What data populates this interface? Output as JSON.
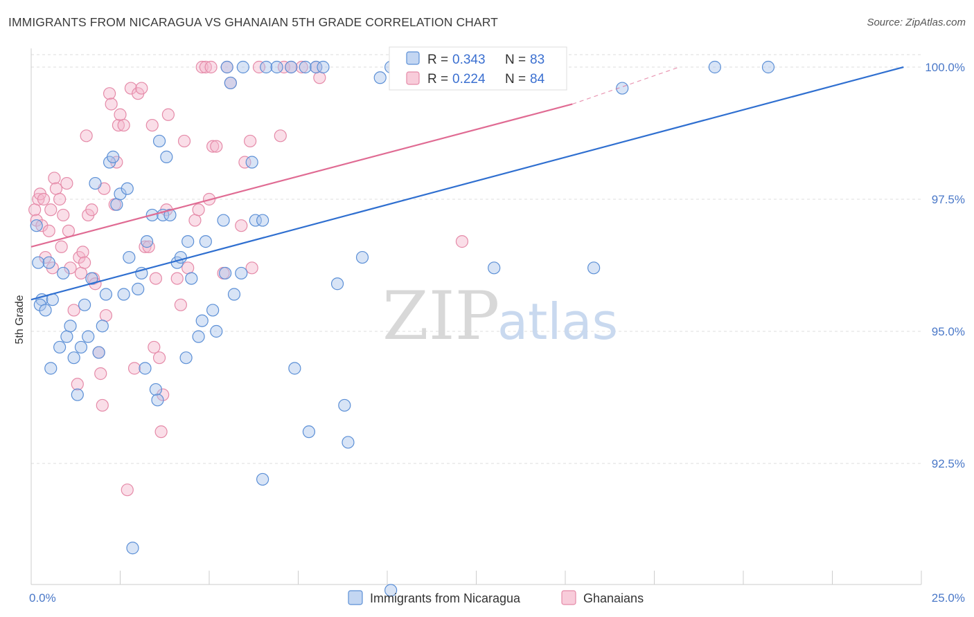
{
  "title": "IMMIGRANTS FROM NICARAGUA VS GHANAIAN 5TH GRADE CORRELATION CHART",
  "source": "Source: ZipAtlas.com",
  "watermark": {
    "zip": "ZIP",
    "atlas": "atlas"
  },
  "colors": {
    "blue_fill": "#a9c4ec",
    "blue_stroke": "#5b8fd6",
    "blue_line": "#2f6fd0",
    "pink_fill": "#f5b6cb",
    "pink_stroke": "#e58aa8",
    "pink_line": "#e06b93",
    "grid": "#dddddd",
    "axis_text": "#4a78c8"
  },
  "legend": {
    "items": [
      {
        "r_label": "R = ",
        "r_value": "0.343",
        "n_label": "N = ",
        "n_value": "83"
      },
      {
        "r_label": "R = ",
        "r_value": "0.224",
        "n_label": "N = ",
        "n_value": "84"
      }
    ]
  },
  "chart_data": {
    "type": "scatter",
    "title": "IMMIGRANTS FROM NICARAGUA VS GHANAIAN 5TH GRADE CORRELATION CHART",
    "ylabel": "5th Grade",
    "xlabel": "",
    "xlim": [
      0,
      25
    ],
    "ylim": [
      90.0,
      100.3
    ],
    "x_tick_labels": [
      "0.0%",
      "25.0%"
    ],
    "y_ticks": [
      92.5,
      95.0,
      97.5,
      100.0
    ],
    "y_tick_labels": [
      "92.5%",
      "95.0%",
      "97.5%",
      "100.0%"
    ],
    "grid": true,
    "legend_placement": "top-center",
    "series": [
      {
        "name": "Immigrants from Nicaragua",
        "color": "#a9c4ec",
        "R": 0.343,
        "N": 83,
        "trend": {
          "x": [
            0,
            24.5
          ],
          "y": [
            95.6,
            100.0
          ]
        },
        "points": [
          [
            0.15,
            97.0
          ],
          [
            0.2,
            96.3
          ],
          [
            0.3,
            95.6
          ],
          [
            0.25,
            95.5
          ],
          [
            0.4,
            95.4
          ],
          [
            0.5,
            96.3
          ],
          [
            0.6,
            95.6
          ],
          [
            0.55,
            94.3
          ],
          [
            0.8,
            94.7
          ],
          [
            0.9,
            96.1
          ],
          [
            1.0,
            94.9
          ],
          [
            1.1,
            95.1
          ],
          [
            1.2,
            94.5
          ],
          [
            1.3,
            93.8
          ],
          [
            1.4,
            94.7
          ],
          [
            1.5,
            95.5
          ],
          [
            1.6,
            94.9
          ],
          [
            1.7,
            96.0
          ],
          [
            1.8,
            97.8
          ],
          [
            1.9,
            94.6
          ],
          [
            2.0,
            95.1
          ],
          [
            2.1,
            95.7
          ],
          [
            2.2,
            98.2
          ],
          [
            2.3,
            98.3
          ],
          [
            2.4,
            97.4
          ],
          [
            2.5,
            97.6
          ],
          [
            2.6,
            95.7
          ],
          [
            2.7,
            97.7
          ],
          [
            2.75,
            96.4
          ],
          [
            2.85,
            90.9
          ],
          [
            3.0,
            95.8
          ],
          [
            3.1,
            96.1
          ],
          [
            3.2,
            94.3
          ],
          [
            3.25,
            96.7
          ],
          [
            3.4,
            97.2
          ],
          [
            3.5,
            93.9
          ],
          [
            3.55,
            93.7
          ],
          [
            3.6,
            98.6
          ],
          [
            3.7,
            97.2
          ],
          [
            3.8,
            98.3
          ],
          [
            3.9,
            97.2
          ],
          [
            4.1,
            96.3
          ],
          [
            4.2,
            96.4
          ],
          [
            4.35,
            94.5
          ],
          [
            4.4,
            96.7
          ],
          [
            4.5,
            96.0
          ],
          [
            4.7,
            94.9
          ],
          [
            4.8,
            95.2
          ],
          [
            4.9,
            96.7
          ],
          [
            5.1,
            95.4
          ],
          [
            5.2,
            95.0
          ],
          [
            5.4,
            97.1
          ],
          [
            5.45,
            96.1
          ],
          [
            5.5,
            100.0
          ],
          [
            5.6,
            99.7
          ],
          [
            5.7,
            95.7
          ],
          [
            5.9,
            96.1
          ],
          [
            5.95,
            100.0
          ],
          [
            6.2,
            98.2
          ],
          [
            6.3,
            97.1
          ],
          [
            6.5,
            97.1
          ],
          [
            6.5,
            92.2
          ],
          [
            6.6,
            100.0
          ],
          [
            6.9,
            100.0
          ],
          [
            7.3,
            100.0
          ],
          [
            7.4,
            94.3
          ],
          [
            7.7,
            100.0
          ],
          [
            7.8,
            93.1
          ],
          [
            8.0,
            100.0
          ],
          [
            8.2,
            100.0
          ],
          [
            8.6,
            95.9
          ],
          [
            8.8,
            93.6
          ],
          [
            8.9,
            92.9
          ],
          [
            9.3,
            96.4
          ],
          [
            9.8,
            99.8
          ],
          [
            10.1,
            100.0
          ],
          [
            10.1,
            90.1
          ],
          [
            10.9,
            100.0
          ],
          [
            13.0,
            96.2
          ],
          [
            15.8,
            96.2
          ],
          [
            16.6,
            99.6
          ],
          [
            19.2,
            100.0
          ],
          [
            20.7,
            100.0
          ]
        ]
      },
      {
        "name": "Ghanaians",
        "color": "#f5b6cb",
        "R": 0.224,
        "N": 84,
        "trend": {
          "x": [
            0,
            15.2
          ],
          "y": [
            96.6,
            99.3
          ]
        },
        "trend_dashed_extension": {
          "x": [
            15.2,
            18.2
          ],
          "y": [
            99.3,
            100.0
          ]
        },
        "points": [
          [
            0.1,
            97.3
          ],
          [
            0.15,
            97.1
          ],
          [
            0.2,
            97.5
          ],
          [
            0.25,
            97.6
          ],
          [
            0.3,
            97.0
          ],
          [
            0.35,
            97.5
          ],
          [
            0.4,
            96.4
          ],
          [
            0.5,
            96.9
          ],
          [
            0.55,
            97.3
          ],
          [
            0.6,
            96.2
          ],
          [
            0.65,
            97.9
          ],
          [
            0.7,
            97.7
          ],
          [
            0.8,
            97.5
          ],
          [
            0.85,
            96.6
          ],
          [
            0.9,
            97.2
          ],
          [
            1.0,
            97.8
          ],
          [
            1.05,
            96.9
          ],
          [
            1.1,
            96.2
          ],
          [
            1.2,
            95.4
          ],
          [
            1.3,
            94.0
          ],
          [
            1.35,
            96.4
          ],
          [
            1.4,
            96.1
          ],
          [
            1.45,
            96.5
          ],
          [
            1.5,
            96.3
          ],
          [
            1.55,
            98.7
          ],
          [
            1.6,
            97.2
          ],
          [
            1.7,
            97.3
          ],
          [
            1.75,
            96.0
          ],
          [
            1.8,
            95.9
          ],
          [
            1.9,
            94.6
          ],
          [
            1.95,
            94.2
          ],
          [
            2.0,
            93.6
          ],
          [
            2.05,
            97.7
          ],
          [
            2.1,
            95.3
          ],
          [
            2.2,
            99.5
          ],
          [
            2.25,
            99.3
          ],
          [
            2.35,
            97.4
          ],
          [
            2.4,
            98.2
          ],
          [
            2.45,
            98.9
          ],
          [
            2.5,
            99.1
          ],
          [
            2.6,
            98.9
          ],
          [
            2.7,
            92.0
          ],
          [
            2.8,
            99.6
          ],
          [
            2.9,
            94.3
          ],
          [
            3.0,
            99.5
          ],
          [
            3.1,
            99.6
          ],
          [
            3.2,
            96.6
          ],
          [
            3.3,
            96.6
          ],
          [
            3.4,
            98.9
          ],
          [
            3.45,
            94.7
          ],
          [
            3.5,
            96.0
          ],
          [
            3.6,
            94.5
          ],
          [
            3.65,
            93.1
          ],
          [
            3.7,
            93.8
          ],
          [
            3.8,
            97.3
          ],
          [
            3.85,
            99.1
          ],
          [
            4.1,
            96.0
          ],
          [
            4.2,
            95.5
          ],
          [
            4.3,
            98.6
          ],
          [
            4.4,
            96.2
          ],
          [
            4.6,
            97.1
          ],
          [
            4.7,
            97.3
          ],
          [
            4.8,
            100.0
          ],
          [
            4.9,
            100.0
          ],
          [
            5.0,
            97.5
          ],
          [
            5.05,
            100.0
          ],
          [
            5.1,
            98.5
          ],
          [
            5.2,
            98.5
          ],
          [
            5.4,
            96.1
          ],
          [
            5.5,
            100.0
          ],
          [
            5.6,
            99.7
          ],
          [
            5.9,
            97.0
          ],
          [
            6.0,
            98.2
          ],
          [
            6.15,
            98.6
          ],
          [
            6.2,
            96.2
          ],
          [
            6.4,
            100.0
          ],
          [
            7.0,
            98.7
          ],
          [
            7.1,
            100.0
          ],
          [
            7.3,
            100.0
          ],
          [
            7.6,
            100.0
          ],
          [
            8.0,
            100.0
          ],
          [
            8.1,
            99.8
          ],
          [
            12.1,
            96.7
          ],
          [
            12.6,
            100.0
          ]
        ]
      }
    ]
  },
  "bottom_legend": [
    {
      "label": "Immigrants from Nicaragua"
    },
    {
      "label": "Ghanaians"
    }
  ]
}
